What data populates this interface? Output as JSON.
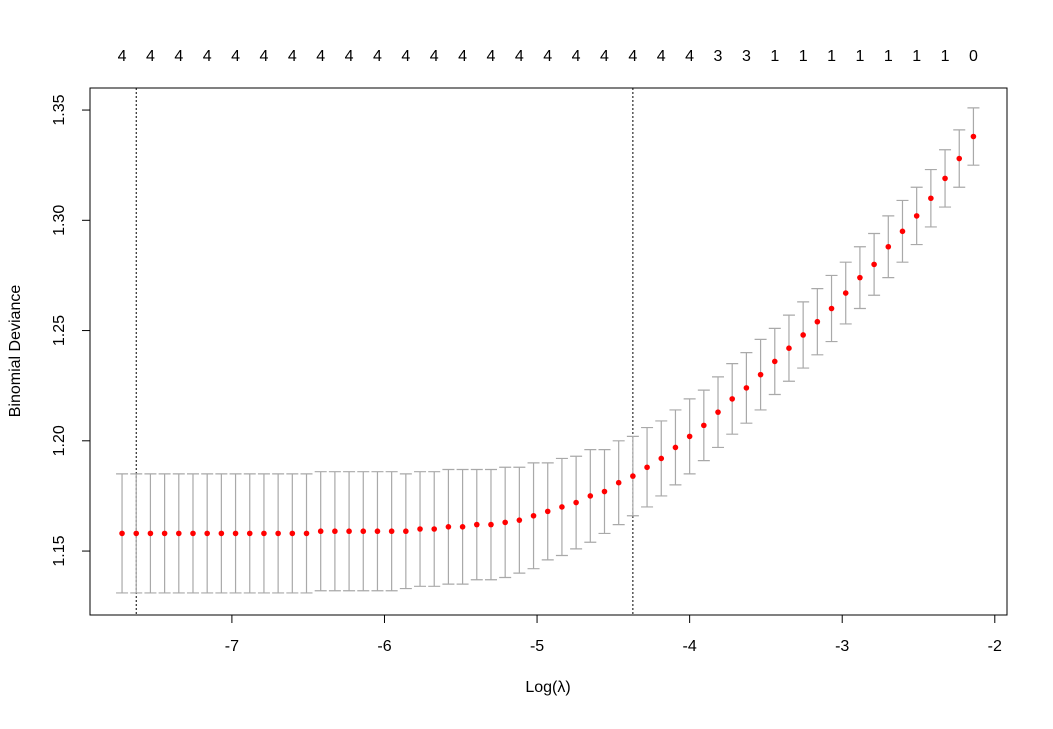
{
  "chart_data": {
    "type": "errorbar",
    "x_label": "Log(λ)",
    "y_label": "Binomial Deviance",
    "x": [
      -7.72,
      -7.627,
      -7.534,
      -7.441,
      -7.348,
      -7.255,
      -7.162,
      -7.069,
      -6.976,
      -6.883,
      -6.79,
      -6.697,
      -6.604,
      -6.511,
      -6.418,
      -6.325,
      -6.232,
      -6.139,
      -6.046,
      -5.953,
      -5.86,
      -5.767,
      -5.674,
      -5.581,
      -5.488,
      -5.395,
      -5.302,
      -5.209,
      -5.116,
      -5.023,
      -4.93,
      -4.837,
      -4.744,
      -4.651,
      -4.558,
      -4.465,
      -4.372,
      -4.279,
      -4.186,
      -4.093,
      -4.0,
      -3.907,
      -3.814,
      -3.721,
      -3.628,
      -3.535,
      -3.442,
      -3.349,
      -3.256,
      -3.163,
      -3.07,
      -2.977,
      -2.884,
      -2.791,
      -2.698,
      -2.605,
      -2.512,
      -2.419,
      -2.326,
      -2.233,
      -2.14
    ],
    "values": [
      1.158,
      1.158,
      1.158,
      1.158,
      1.158,
      1.158,
      1.158,
      1.158,
      1.158,
      1.158,
      1.158,
      1.158,
      1.158,
      1.158,
      1.159,
      1.159,
      1.159,
      1.159,
      1.159,
      1.159,
      1.159,
      1.16,
      1.16,
      1.161,
      1.161,
      1.162,
      1.162,
      1.163,
      1.164,
      1.166,
      1.168,
      1.17,
      1.172,
      1.175,
      1.177,
      1.181,
      1.184,
      1.188,
      1.192,
      1.197,
      1.202,
      1.207,
      1.213,
      1.219,
      1.224,
      1.23,
      1.236,
      1.242,
      1.248,
      1.254,
      1.26,
      1.267,
      1.274,
      1.28,
      1.288,
      1.295,
      1.302,
      1.31,
      1.319,
      1.328,
      1.338
    ],
    "errors": [
      0.027,
      0.027,
      0.027,
      0.027,
      0.027,
      0.027,
      0.027,
      0.027,
      0.027,
      0.027,
      0.027,
      0.027,
      0.027,
      0.027,
      0.027,
      0.027,
      0.027,
      0.027,
      0.027,
      0.027,
      0.026,
      0.026,
      0.026,
      0.026,
      0.026,
      0.025,
      0.025,
      0.025,
      0.024,
      0.024,
      0.022,
      0.022,
      0.021,
      0.021,
      0.019,
      0.019,
      0.018,
      0.018,
      0.017,
      0.017,
      0.017,
      0.016,
      0.016,
      0.016,
      0.016,
      0.016,
      0.015,
      0.015,
      0.015,
      0.015,
      0.015,
      0.014,
      0.014,
      0.014,
      0.014,
      0.014,
      0.013,
      0.013,
      0.013,
      0.013,
      0.013
    ],
    "top_labels": [
      4,
      4,
      4,
      4,
      4,
      4,
      4,
      4,
      4,
      4,
      4,
      4,
      4,
      4,
      4,
      4,
      4,
      4,
      4,
      4,
      4,
      3,
      3,
      1,
      1,
      1,
      1,
      1,
      1,
      1,
      0
    ],
    "vlines": [
      -7.627,
      -4.372
    ],
    "point_color": "#ff0000",
    "bar_color": "#a9a9a9",
    "xlim": [
      -7.93,
      -1.92
    ],
    "ylim": [
      1.121,
      1.36
    ],
    "xticks": [
      -7,
      -6,
      -5,
      -4,
      -3,
      -2
    ],
    "yticks": [
      1.15,
      {
        "value": 1.2,
        "label": "1.20"
      },
      1.25,
      {
        "value": 1.3,
        "label": "1.30"
      },
      1.35
    ]
  }
}
